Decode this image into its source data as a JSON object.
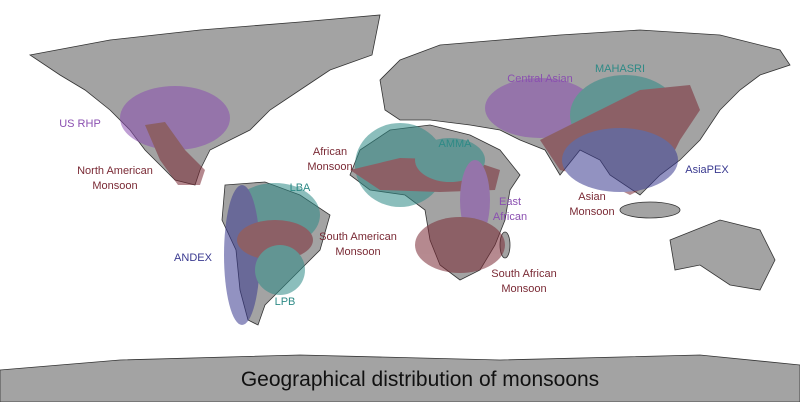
{
  "caption": "Geographical distribution of monsoons",
  "labels": [
    {
      "lines": [
        "US RHP"
      ]
    },
    {
      "lines": [
        "North American",
        "Monsoon"
      ]
    },
    {
      "lines": [
        "African",
        "Monsoon"
      ]
    },
    {
      "lines": [
        "AMMA"
      ]
    },
    {
      "lines": [
        "Central Asian"
      ]
    },
    {
      "lines": [
        "MAHASRI"
      ]
    },
    {
      "lines": [
        "AsiaPEX"
      ]
    },
    {
      "lines": [
        "East",
        "African"
      ]
    },
    {
      "lines": [
        "Asian",
        "Monsoon"
      ]
    },
    {
      "lines": [
        "LBA"
      ]
    },
    {
      "lines": [
        "South American",
        "Monsoon"
      ]
    },
    {
      "lines": [
        "ANDEX"
      ]
    },
    {
      "lines": [
        "South African",
        "Monsoon"
      ]
    },
    {
      "lines": [
        "LPB"
      ]
    }
  ]
}
